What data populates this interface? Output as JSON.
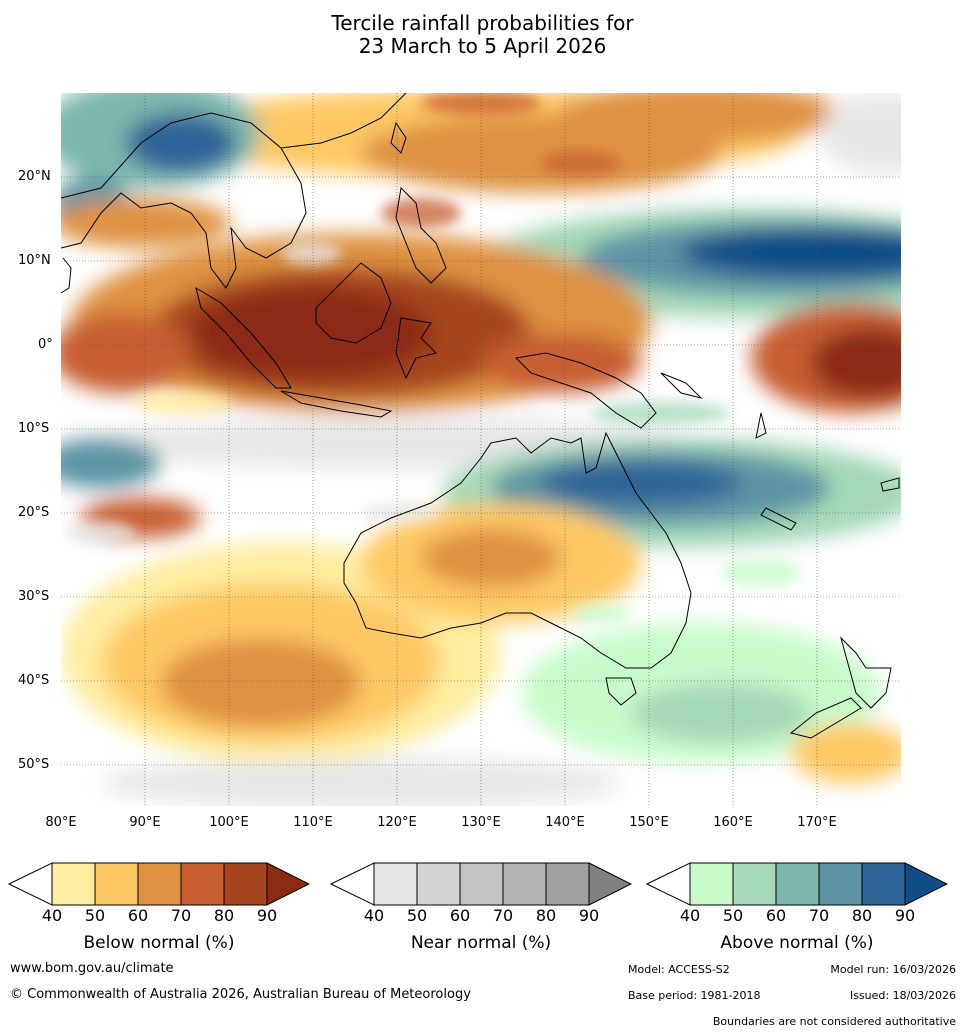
{
  "title": {
    "line1": "Tercile rainfall probabilities for",
    "line2": "23 March to 5 April 2026"
  },
  "map": {
    "lat_labels": [
      "20°N",
      "10°N",
      "0°",
      "10°S",
      "20°S",
      "30°S",
      "40°S",
      "50°S"
    ],
    "lon_labels": [
      "80°E",
      "90°E",
      "100°E",
      "110°E",
      "120°E",
      "130°E",
      "140°E",
      "150°E",
      "160°E",
      "170°E"
    ]
  },
  "colorbars": [
    {
      "label": "Below normal (%)",
      "ticks": [
        "40",
        "50",
        "60",
        "70",
        "80",
        "90"
      ],
      "colors": [
        "#ffffff",
        "#feeda0",
        "#fec965",
        "#df9343",
        "#c85f30",
        "#a5441f",
        "#8b2c12"
      ]
    },
    {
      "label": "Near normal (%)",
      "ticks": [
        "40",
        "50",
        "60",
        "70",
        "80",
        "90"
      ],
      "colors": [
        "#ffffff",
        "#e6e6e6",
        "#d4d4d4",
        "#c3c3c3",
        "#b3b3b3",
        "#a0a0a0",
        "#818181"
      ]
    },
    {
      "label": "Above normal (%)",
      "ticks": [
        "40",
        "50",
        "60",
        "70",
        "80",
        "90"
      ],
      "colors": [
        "#ffffff",
        "#c8fbca",
        "#a5d8b8",
        "#7cb8ae",
        "#5c94a4",
        "#2d6497",
        "#114d87"
      ]
    }
  ],
  "footer": {
    "website": "www.bom.gov.au/climate",
    "copyright": "© Commonwealth of Australia 2026, Australian Bureau of Meteorology",
    "model": "Model: ACCESS-S2",
    "model_run": "Model run: 16/03/2026",
    "base_period": "Base period: 1981-2018",
    "issued": "Issued: 18/03/2026",
    "disclaimer": "Boundaries are not considered authoritative"
  }
}
